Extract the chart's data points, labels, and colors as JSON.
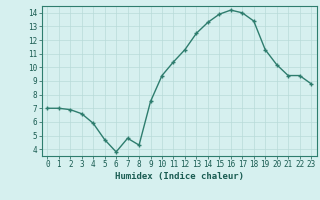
{
  "x": [
    0,
    1,
    2,
    3,
    4,
    5,
    6,
    7,
    8,
    9,
    10,
    11,
    12,
    13,
    14,
    15,
    16,
    17,
    18,
    19,
    20,
    21,
    22,
    23
  ],
  "y": [
    7.0,
    7.0,
    6.9,
    6.6,
    5.9,
    4.7,
    3.8,
    4.8,
    4.3,
    7.5,
    9.4,
    10.4,
    11.3,
    12.5,
    13.3,
    13.9,
    14.2,
    14.0,
    13.4,
    11.3,
    10.2,
    9.4,
    9.4,
    8.8
  ],
  "xlabel": "Humidex (Indice chaleur)",
  "ylim": [
    3.5,
    14.5
  ],
  "xlim": [
    -0.5,
    23.5
  ],
  "yticks": [
    4,
    5,
    6,
    7,
    8,
    9,
    10,
    11,
    12,
    13,
    14
  ],
  "xticks": [
    0,
    1,
    2,
    3,
    4,
    5,
    6,
    7,
    8,
    9,
    10,
    11,
    12,
    13,
    14,
    15,
    16,
    17,
    18,
    19,
    20,
    21,
    22,
    23
  ],
  "line_color": "#2e7d6e",
  "marker_color": "#2e7d6e",
  "bg_color": "#d6f0ef",
  "grid_color": "#b8dbd9",
  "axis_color": "#2e7d6e",
  "tick_color": "#1a5c52",
  "label_color": "#1a5c52",
  "xlabel_fontsize": 6.5,
  "tick_fontsize": 5.5
}
